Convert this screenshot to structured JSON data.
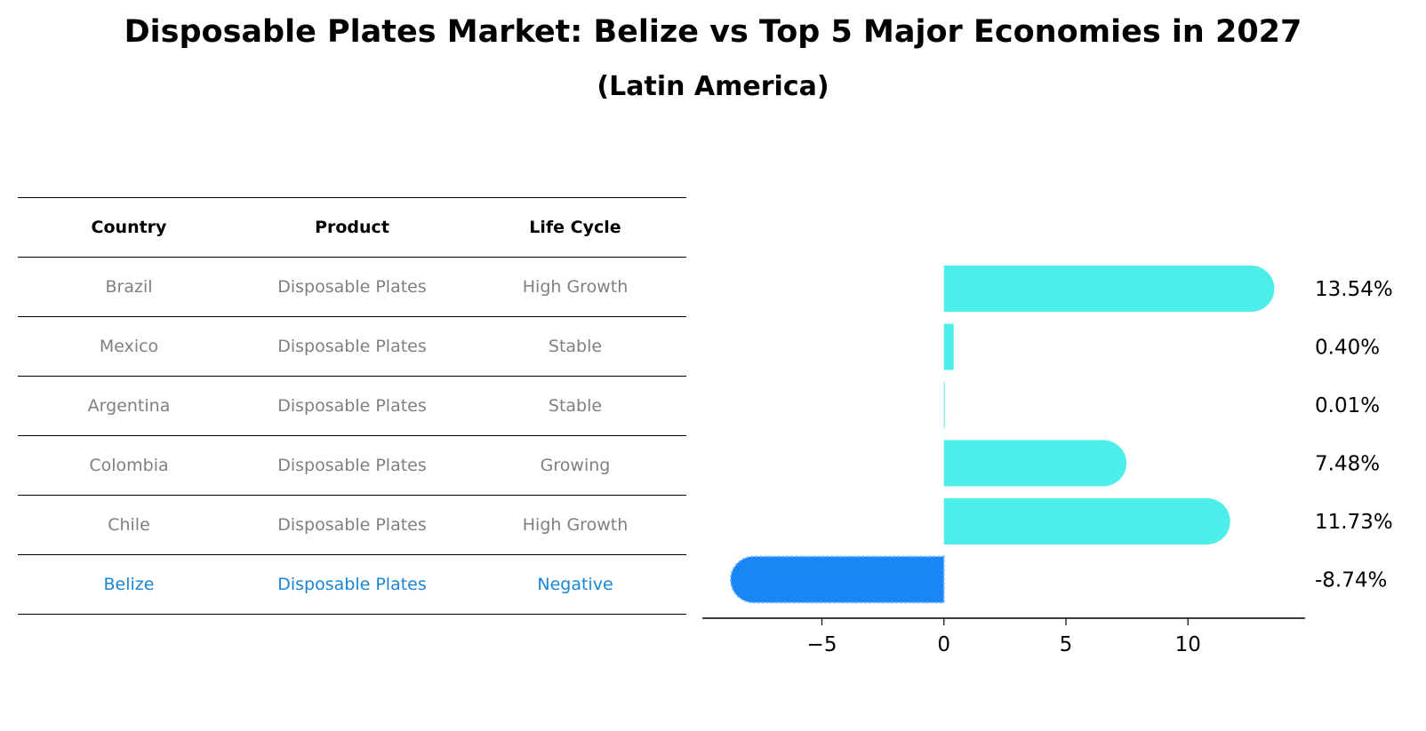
{
  "title": "Disposable Plates Market: Belize vs Top 5 Major Economies in 2027",
  "subtitle": "(Latin America)",
  "table": {
    "headers": [
      "Country",
      "Product",
      "Life Cycle"
    ],
    "rows": [
      {
        "country": "Brazil",
        "product": "Disposable Plates",
        "life_cycle": "High Growth",
        "highlight": false
      },
      {
        "country": "Mexico",
        "product": "Disposable Plates",
        "life_cycle": "Stable",
        "highlight": false
      },
      {
        "country": "Argentina",
        "product": "Disposable Plates",
        "life_cycle": "Stable",
        "highlight": false
      },
      {
        "country": "Colombia",
        "product": "Disposable Plates",
        "life_cycle": "Growing",
        "highlight": false
      },
      {
        "country": "Chile",
        "product": "Disposable Plates",
        "life_cycle": "High Growth",
        "highlight": false
      },
      {
        "country": "Belize",
        "product": "Disposable Plates",
        "life_cycle": "Negative",
        "highlight": true
      }
    ]
  },
  "colors": {
    "normal_bar": "#4deeea",
    "highlight_bar": "#1a85f5",
    "normal_text": "#808080",
    "highlight_text": "#1a85d6"
  },
  "chart_data": {
    "type": "bar",
    "orientation": "horizontal",
    "categories": [
      "Brazil",
      "Mexico",
      "Argentina",
      "Colombia",
      "Chile",
      "Belize"
    ],
    "values": [
      13.54,
      0.4,
      0.01,
      7.48,
      11.73,
      -8.74
    ],
    "value_labels": [
      "13.54%",
      "0.40%",
      "0.01%",
      "7.48%",
      "11.73%",
      "-8.74%"
    ],
    "xticks": [
      -5,
      0,
      5,
      10
    ],
    "xtick_labels": [
      "−5",
      "0",
      "5",
      "10"
    ],
    "xlim": [
      -9.9,
      14.8
    ],
    "grid": false
  }
}
